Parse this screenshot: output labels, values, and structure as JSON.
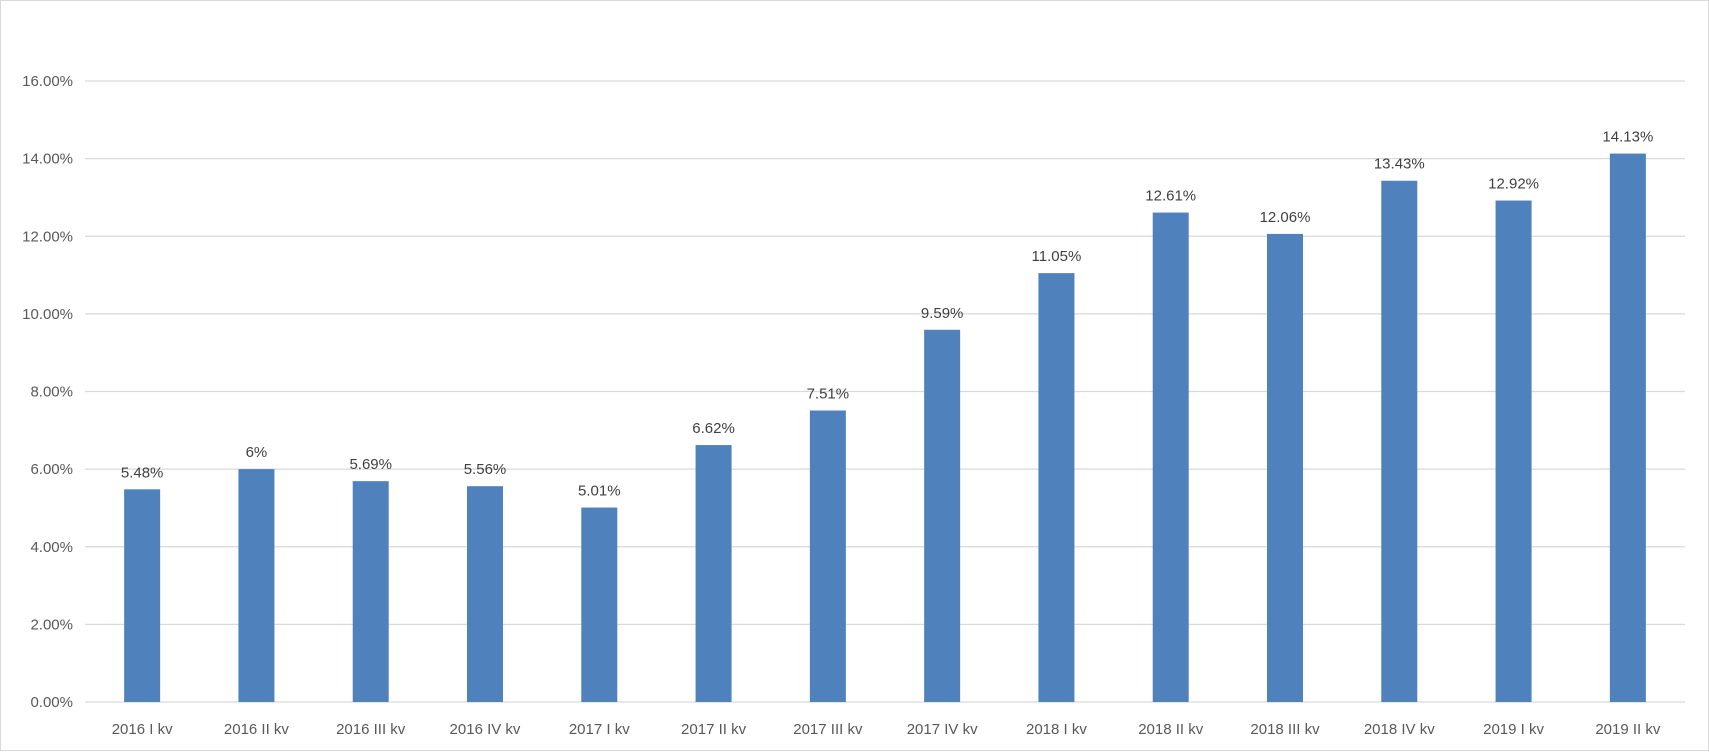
{
  "chart_data": {
    "type": "bar",
    "title": "",
    "xlabel": "",
    "ylabel": "",
    "categories": [
      "2016 I kv",
      "2016 II kv",
      "2016 III kv",
      "2016 IV kv",
      "2017 I kv",
      "2017 II kv",
      "2017 III kv",
      "2017 IV kv",
      "2018 I kv",
      "2018 II kv",
      "2018 III kv",
      "2018 IV kv",
      "2019 I kv",
      "2019 II kv"
    ],
    "values": [
      5.48,
      6.0,
      5.69,
      5.56,
      5.01,
      6.62,
      7.51,
      9.59,
      11.05,
      12.61,
      12.06,
      13.43,
      12.92,
      14.13
    ],
    "data_labels": [
      "5.48%",
      "6%",
      "5.69%",
      "5.56%",
      "5.01%",
      "6.62%",
      "7.51%",
      "9.59%",
      "11.05%",
      "12.61%",
      "12.06%",
      "13.43%",
      "12.92%",
      "14.13%"
    ],
    "ylim": [
      0,
      16
    ],
    "yticks": [
      0,
      2,
      4,
      6,
      8,
      10,
      12,
      14,
      16
    ],
    "ytick_labels": [
      "0.00%",
      "2.00%",
      "4.00%",
      "6.00%",
      "8.00%",
      "10.00%",
      "12.00%",
      "14.00%",
      "16.00%"
    ],
    "grid": true,
    "legend": "none",
    "bar_color": "#4f81bd",
    "grid_color": "#d9d9d9"
  }
}
